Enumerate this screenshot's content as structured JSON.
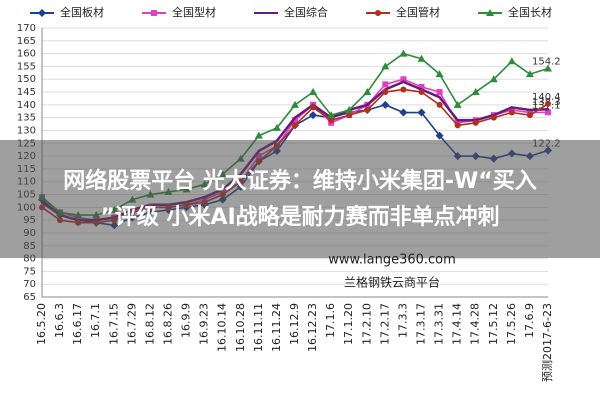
{
  "chart_data": {
    "type": "line",
    "categories": [
      "16.5.20",
      "16.6.3",
      "16.6.17",
      "16.7.1",
      "16.7.15",
      "16.7.29",
      "16.8.12",
      "16.8.26",
      "16.9.9",
      "16.9.23",
      "16.10.14",
      "16.10.28",
      "16.11.11",
      "16.11.24",
      "16.12.9",
      "16.12.23",
      "17.1.6",
      "17.1.20",
      "17.2.10",
      "17.2.17",
      "17.3.3",
      "17.3.17",
      "17.3.31",
      "17.4.14",
      "17.4.28",
      "17.5.12",
      "17.5.26",
      "17.6.9",
      "预测2017-6-23"
    ],
    "series": [
      {
        "name": "全国板材",
        "color": "#1f3f8f",
        "marker": "diamond",
        "values": [
          103,
          97,
          95,
          94,
          93,
          96,
          98,
          99,
          100,
          101,
          103,
          108,
          118,
          122,
          132,
          136,
          135,
          137,
          138,
          140,
          137,
          137,
          128,
          120,
          120,
          119,
          121,
          120,
          122.2
        ],
        "value_labels": [
          null,
          null,
          null,
          null,
          null,
          null,
          null,
          null,
          null,
          null,
          null,
          null,
          null,
          null,
          null,
          null,
          null,
          null,
          null,
          null,
          null,
          null,
          null,
          null,
          null,
          null,
          null,
          null,
          "122.2"
        ]
      },
      {
        "name": "全国型材",
        "color": "#e040c0",
        "marker": "square",
        "values": [
          104,
          98,
          96,
          95,
          96,
          99,
          100,
          100,
          101,
          103,
          106,
          110,
          120,
          124,
          134,
          140,
          133,
          136,
          140,
          148,
          150,
          147,
          145,
          133,
          134,
          136,
          138,
          137,
          137.1
        ],
        "value_labels": [
          null,
          null,
          null,
          null,
          null,
          null,
          null,
          null,
          null,
          null,
          null,
          null,
          null,
          null,
          null,
          null,
          null,
          null,
          null,
          null,
          null,
          null,
          null,
          null,
          null,
          null,
          null,
          null,
          "137.1"
        ]
      },
      {
        "name": "全国综合",
        "color": "#6a1a7a",
        "marker": "none",
        "values": [
          102,
          97,
          95,
          95,
          96,
          99,
          101,
          101,
          102,
          104,
          107,
          113,
          122,
          126,
          135,
          140,
          135,
          138,
          140,
          146,
          149,
          146,
          143,
          134,
          134,
          136,
          139,
          138,
          138.3
        ],
        "value_labels": [
          null,
          null,
          null,
          null,
          null,
          null,
          null,
          null,
          null,
          null,
          null,
          null,
          null,
          null,
          null,
          null,
          null,
          null,
          null,
          null,
          null,
          null,
          null,
          null,
          null,
          null,
          null,
          null,
          "138.3"
        ]
      },
      {
        "name": "全国管材",
        "color": "#b03020",
        "marker": "circle",
        "values": [
          100,
          95,
          94,
          94,
          95,
          98,
          100,
          100,
          101,
          102,
          105,
          110,
          118,
          124,
          132,
          139,
          134,
          136,
          138,
          145,
          146,
          145,
          140,
          132,
          133,
          135,
          137,
          136,
          140.4
        ],
        "value_labels": [
          null,
          null,
          null,
          null,
          null,
          null,
          null,
          null,
          null,
          null,
          null,
          null,
          null,
          null,
          null,
          null,
          null,
          null,
          null,
          null,
          null,
          null,
          null,
          null,
          null,
          null,
          null,
          null,
          "140.4"
        ]
      },
      {
        "name": "全国长材",
        "color": "#2e8b3a",
        "marker": "triangle",
        "values": [
          104,
          98,
          97,
          97,
          99,
          103,
          105,
          106,
          107,
          109,
          113,
          119,
          128,
          131,
          140,
          145,
          136,
          138,
          145,
          155,
          160,
          158,
          152,
          140,
          145,
          150,
          157,
          152,
          154.2
        ],
        "value_labels": [
          null,
          null,
          null,
          null,
          null,
          null,
          null,
          null,
          null,
          null,
          null,
          null,
          null,
          null,
          null,
          null,
          null,
          null,
          null,
          null,
          null,
          null,
          null,
          null,
          null,
          null,
          null,
          null,
          "154.2"
        ]
      }
    ],
    "ylim": [
      65,
      170
    ],
    "yticks": [
      65,
      70,
      75,
      80,
      85,
      90,
      95,
      100,
      105,
      110,
      115,
      120,
      125,
      130,
      135,
      140,
      145,
      150,
      155,
      160,
      165,
      170
    ],
    "grid": true,
    "legend": "top"
  },
  "overlay": {
    "headline": [
      "网络股票平台 光大证券：维持小米集团-W“买入",
      "”评级 小米AI战略是耐力赛而非单点冲刺"
    ],
    "watermark": [
      "www.lange360.com",
      "兰格钢铁云商平台"
    ]
  }
}
